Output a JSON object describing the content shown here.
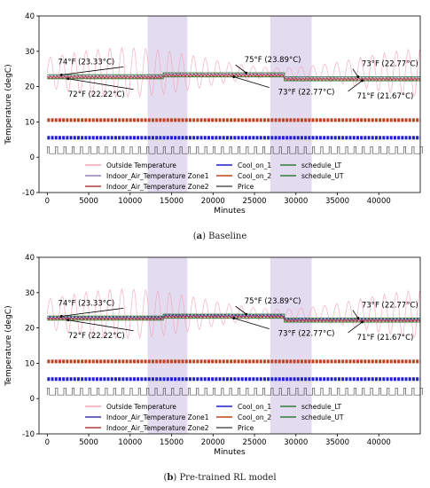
{
  "chart_data": [
    {
      "type": "line",
      "caption_letter": "a",
      "caption_text": "Baseline",
      "xlabel": "Minutes",
      "ylabel": "Temperature (degC)",
      "xlim": [
        -1000,
        45000
      ],
      "ylim": [
        -10,
        40
      ],
      "xticks": [
        0,
        5000,
        10000,
        15000,
        20000,
        25000,
        30000,
        35000,
        40000
      ],
      "yticks": [
        -10,
        0,
        10,
        20,
        30,
        40
      ],
      "grid": false,
      "legend_position": "bottom",
      "price_bands": [
        [
          12100,
          16900
        ],
        [
          26900,
          31900
        ]
      ],
      "series": [
        {
          "name": "Outside Temperature",
          "color": "#f4a3b4",
          "style": "oscillation",
          "base": 24,
          "amplitude": 7,
          "period": 1440
        },
        {
          "name": "Indoor_Air_Temperature Zone1",
          "color": "#9b7fb8",
          "style": "band",
          "y": 23.2
        },
        {
          "name": "Indoor_Air_Temperature Zone2",
          "color": "#b33a3a",
          "style": "band",
          "y": 23.0
        },
        {
          "name": "Cool_on_1",
          "color": "#1f1fd1",
          "style": "dashes",
          "y": 5.5
        },
        {
          "name": "Cool_on_2",
          "color": "#c0401f",
          "style": "dashes",
          "y": 10.5
        },
        {
          "name": "Price",
          "color": "#555555",
          "style": "square",
          "low": 1,
          "high": 3
        },
        {
          "name": "schedule_LT",
          "color": "#2e7d32",
          "style": "step",
          "x": [
            0,
            14000,
            14000,
            28600,
            28600,
            45000
          ],
          "y": [
            22.22,
            22.22,
            22.77,
            22.77,
            21.67,
            21.67
          ]
        },
        {
          "name": "schedule_UT",
          "color": "#2e7d32",
          "style": "step",
          "x": [
            0,
            14000,
            14000,
            28600,
            28600,
            45000
          ],
          "y": [
            23.33,
            23.33,
            23.89,
            23.89,
            22.77,
            22.77
          ]
        }
      ],
      "annotations": [
        {
          "text": "74°F (23.33°C)",
          "at": [
            1700,
            23.33
          ]
        },
        {
          "text": "72°F (22.22°C)",
          "at": [
            2500,
            22.22
          ]
        },
        {
          "text": "75°F (23.89°C)",
          "at": [
            24000,
            23.89
          ]
        },
        {
          "text": "73°F (22.77°C)",
          "at": [
            22500,
            22.77
          ]
        },
        {
          "text": "73°F (22.77°C)",
          "at": [
            37500,
            22.77
          ]
        },
        {
          "text": "71°F (21.67°C)",
          "at": [
            38000,
            21.67
          ]
        }
      ]
    },
    {
      "type": "line",
      "caption_letter": "b",
      "caption_text": "Pre-trained RL model",
      "xlabel": "Minutes",
      "ylabel": "Temperature (degC)",
      "xlim": [
        -1000,
        45000
      ],
      "ylim": [
        -10,
        40
      ],
      "xticks": [
        0,
        5000,
        10000,
        15000,
        20000,
        25000,
        30000,
        35000,
        40000
      ],
      "yticks": [
        -10,
        0,
        10,
        20,
        30,
        40
      ],
      "grid": false,
      "legend_position": "bottom",
      "price_bands": [
        [
          12100,
          16900
        ],
        [
          26900,
          31900
        ]
      ],
      "series": [
        {
          "name": "Outside Temperature",
          "color": "#f4a3b4",
          "style": "oscillation",
          "base": 24,
          "amplitude": 7,
          "period": 1440
        },
        {
          "name": "Indoor_Air_Temperature Zone1",
          "color": "#3a3aa8",
          "style": "band",
          "y": 23.4
        },
        {
          "name": "Indoor_Air_Temperature Zone2",
          "color": "#b33a3a",
          "style": "band",
          "y": 23.0
        },
        {
          "name": "Cool_on_1",
          "color": "#1f1fd1",
          "style": "dashes",
          "y": 5.5
        },
        {
          "name": "Cool_on_2",
          "color": "#c0401f",
          "style": "dashes",
          "y": 10.5
        },
        {
          "name": "Price",
          "color": "#555555",
          "style": "square",
          "low": 1,
          "high": 3
        },
        {
          "name": "schedule_LT",
          "color": "#2e7d32",
          "style": "step",
          "x": [
            0,
            14000,
            14000,
            28600,
            28600,
            45000
          ],
          "y": [
            22.22,
            22.22,
            22.77,
            22.77,
            21.67,
            21.67
          ]
        },
        {
          "name": "schedule_UT",
          "color": "#2e7d32",
          "style": "step",
          "x": [
            0,
            14000,
            14000,
            28600,
            28600,
            45000
          ],
          "y": [
            23.33,
            23.33,
            23.89,
            23.89,
            22.77,
            22.77
          ]
        }
      ],
      "annotations": [
        {
          "text": "74°F (23.33°C)",
          "at": [
            1700,
            23.33
          ]
        },
        {
          "text": "72°F (22.22°C)",
          "at": [
            2500,
            22.22
          ]
        },
        {
          "text": "75°F (23.89°C)",
          "at": [
            24000,
            23.89
          ]
        },
        {
          "text": "73°F (22.77°C)",
          "at": [
            22500,
            22.77
          ]
        },
        {
          "text": "73°F (22.77°C)",
          "at": [
            37500,
            22.77
          ]
        },
        {
          "text": "71°F (21.67°C)",
          "at": [
            38000,
            21.67
          ]
        }
      ]
    }
  ]
}
